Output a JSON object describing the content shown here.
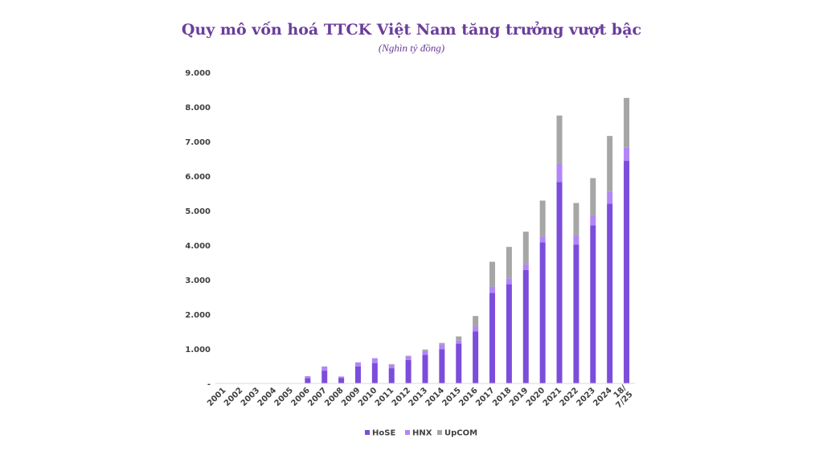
{
  "chart_data": {
    "type": "bar",
    "stacked": true,
    "title": "Quy mô vốn hoá TTCK Việt Nam tăng trưởng vượt bậc",
    "subtitle": "(Nghìn tỷ đồng)",
    "categories": [
      "2001",
      "2002",
      "2003",
      "2004",
      "2005",
      "2006",
      "2007",
      "2008",
      "2009",
      "2010",
      "2011",
      "2012",
      "2013",
      "2014",
      "2015",
      "2016",
      "2017",
      "2018",
      "2019",
      "2020",
      "2021",
      "2022",
      "2023",
      "2024",
      "18/7/25"
    ],
    "series": [
      {
        "name": "HoSE",
        "color": "#7c4ddb",
        "values": [
          1,
          1,
          1,
          1,
          5,
          150,
          370,
          160,
          490,
          590,
          440,
          680,
          830,
          990,
          1150,
          1500,
          2620,
          2870,
          3280,
          4080,
          5830,
          4020,
          4570,
          5200,
          6440
        ]
      },
      {
        "name": "HNX",
        "color": "#b286f7",
        "values": [
          0,
          0,
          0,
          0,
          1,
          60,
          120,
          40,
          120,
          140,
          100,
          100,
          110,
          140,
          90,
          150,
          180,
          170,
          170,
          170,
          520,
          260,
          280,
          350,
          380
        ]
      },
      {
        "name": "UpCOM",
        "color": "#a6a6a6",
        "values": [
          0,
          0,
          0,
          0,
          0,
          0,
          0,
          0,
          0,
          0,
          20,
          20,
          40,
          40,
          120,
          300,
          720,
          910,
          940,
          1040,
          1400,
          940,
          1090,
          1610,
          1440
        ]
      }
    ],
    "yticks": [
      "-",
      "1.000",
      "2.000",
      "3.000",
      "4.000",
      "5.000",
      "6.000",
      "7.000",
      "8.000",
      "9.000"
    ],
    "ylim": [
      0,
      9000
    ],
    "legend_position": "bottom",
    "grid": false
  }
}
